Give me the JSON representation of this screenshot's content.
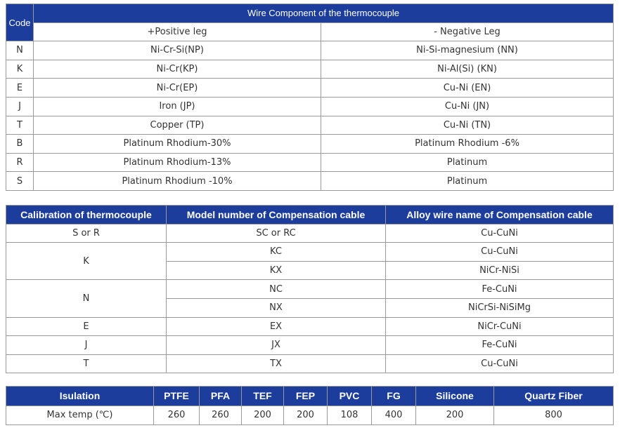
{
  "table1": {
    "code_header": "Code",
    "title": "Wire Component of the thermocouple",
    "positive_header": "+Positive leg",
    "negative_header": "- Negative Leg",
    "rows": [
      {
        "code": "N",
        "positive": "Ni-Cr-Si(NP)",
        "negative": "Ni-Si-magnesium (NN)"
      },
      {
        "code": "K",
        "positive": "Ni-Cr(KP)",
        "negative": "Ni-Al(Si) (KN)"
      },
      {
        "code": "E",
        "positive": "Ni-Cr(EP)",
        "negative": "Cu-Ni (EN)"
      },
      {
        "code": "J",
        "positive": "Iron (JP)",
        "negative": "Cu-Ni (JN)"
      },
      {
        "code": "T",
        "positive": "Copper (TP)",
        "negative": "Cu-Ni (TN)"
      },
      {
        "code": "B",
        "positive": "Platinum Rhodium-30%",
        "negative": "Platinum Rhodium -6%"
      },
      {
        "code": "R",
        "positive": "Platinum Rhodium-13%",
        "negative": "Platinum"
      },
      {
        "code": "S",
        "positive": "Platinum Rhodium -10%",
        "negative": "Platinum"
      }
    ]
  },
  "table2": {
    "headers": [
      "Calibration of thermocouple",
      "Model number of Compensation cable",
      "Alloy wire name of Compensation cable"
    ],
    "groups": [
      {
        "calibration": "S or R",
        "rows": [
          {
            "model": "SC or RC",
            "alloy": "Cu-CuNi"
          }
        ]
      },
      {
        "calibration": "K",
        "rows": [
          {
            "model": "KC",
            "alloy": "Cu-CuNi"
          },
          {
            "model": "KX",
            "alloy": "NiCr-NiSi"
          }
        ]
      },
      {
        "calibration": "N",
        "rows": [
          {
            "model": "NC",
            "alloy": "Fe-CuNi"
          },
          {
            "model": "NX",
            "alloy": "NiCrSi-NiSiMg"
          }
        ]
      },
      {
        "calibration": "E",
        "rows": [
          {
            "model": "EX",
            "alloy": "NiCr-CuNi"
          }
        ]
      },
      {
        "calibration": "J",
        "rows": [
          {
            "model": "JX",
            "alloy": "Fe-CuNi"
          }
        ]
      },
      {
        "calibration": "T",
        "rows": [
          {
            "model": "TX",
            "alloy": "Cu-CuNi"
          }
        ]
      }
    ]
  },
  "table3": {
    "headers": [
      "Isulation",
      "PTFE",
      "PFA",
      "TEF",
      "FEP",
      "PVC",
      "FG",
      "Silicone",
      "Quartz Fiber"
    ],
    "row_label": "Max temp (℃)",
    "values": [
      "260",
      "260",
      "200",
      "200",
      "108",
      "400",
      "200",
      "800"
    ]
  },
  "colors": {
    "header_bg": "#1c3d9c",
    "header_text": "#ffffff",
    "border": "#999999",
    "text": "#333333"
  }
}
